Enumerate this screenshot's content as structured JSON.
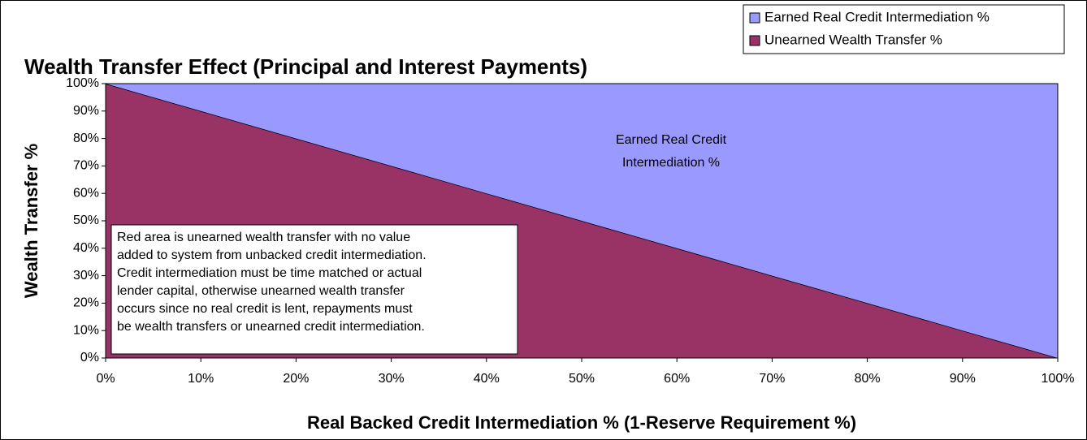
{
  "chart_data": {
    "type": "stacked-area",
    "title": "Wealth Transfer Effect (Principal and Interest Payments)",
    "xlabel": "Real Backed Credit Intermediation % (1-Reserve Requirement %)",
    "ylabel": "Wealth Transfer %",
    "x": [
      0,
      10,
      20,
      30,
      40,
      50,
      60,
      70,
      80,
      90,
      100
    ],
    "series": [
      {
        "name": "Unearned Wealth Transfer %",
        "color": "#993366",
        "values": [
          100,
          90,
          80,
          70,
          60,
          50,
          40,
          30,
          20,
          10,
          0
        ]
      },
      {
        "name": "Earned Real Credit Intermediation %",
        "color": "#9999ff",
        "values": [
          0,
          10,
          20,
          30,
          40,
          50,
          60,
          70,
          80,
          90,
          100
        ]
      }
    ],
    "xlim": [
      0,
      100
    ],
    "ylim": [
      0,
      100
    ],
    "xticks": [
      {
        "value": 0,
        "label": "0%"
      },
      {
        "value": 10,
        "label": "10%"
      },
      {
        "value": 20,
        "label": "20%"
      },
      {
        "value": 30,
        "label": "30%"
      },
      {
        "value": 40,
        "label": "40%"
      },
      {
        "value": 50,
        "label": "50%"
      },
      {
        "value": 60,
        "label": "60%"
      },
      {
        "value": 70,
        "label": "70%"
      },
      {
        "value": 80,
        "label": "80%"
      },
      {
        "value": 90,
        "label": "90%"
      },
      {
        "value": 100,
        "label": "100%"
      }
    ],
    "yticks": [
      {
        "value": 0,
        "label": "0%"
      },
      {
        "value": 10,
        "label": "10%"
      },
      {
        "value": 20,
        "label": "20%"
      },
      {
        "value": 30,
        "label": "30%"
      },
      {
        "value": 40,
        "label": "40%"
      },
      {
        "value": 50,
        "label": "50%"
      },
      {
        "value": 60,
        "label": "60%"
      },
      {
        "value": 70,
        "label": "70%"
      },
      {
        "value": 80,
        "label": "80%"
      },
      {
        "value": 90,
        "label": "90%"
      },
      {
        "value": 100,
        "label": "100%"
      }
    ],
    "grid": false,
    "legend": "top-right",
    "annotations": [
      {
        "lines": [
          "Earned Real Credit",
          "Intermediation %"
        ]
      },
      {
        "lines": [
          "Red area is unearned wealth transfer with no value",
          "added to system from unbacked credit intermediation.",
          "Credit intermediation must be time matched or actual",
          "lender capital, otherwise unearned wealth transfer",
          "occurs since no real credit is lent,  repayments must",
          "be wealth transfers or unearned credit intermediation."
        ],
        "boxed": true
      }
    ]
  }
}
